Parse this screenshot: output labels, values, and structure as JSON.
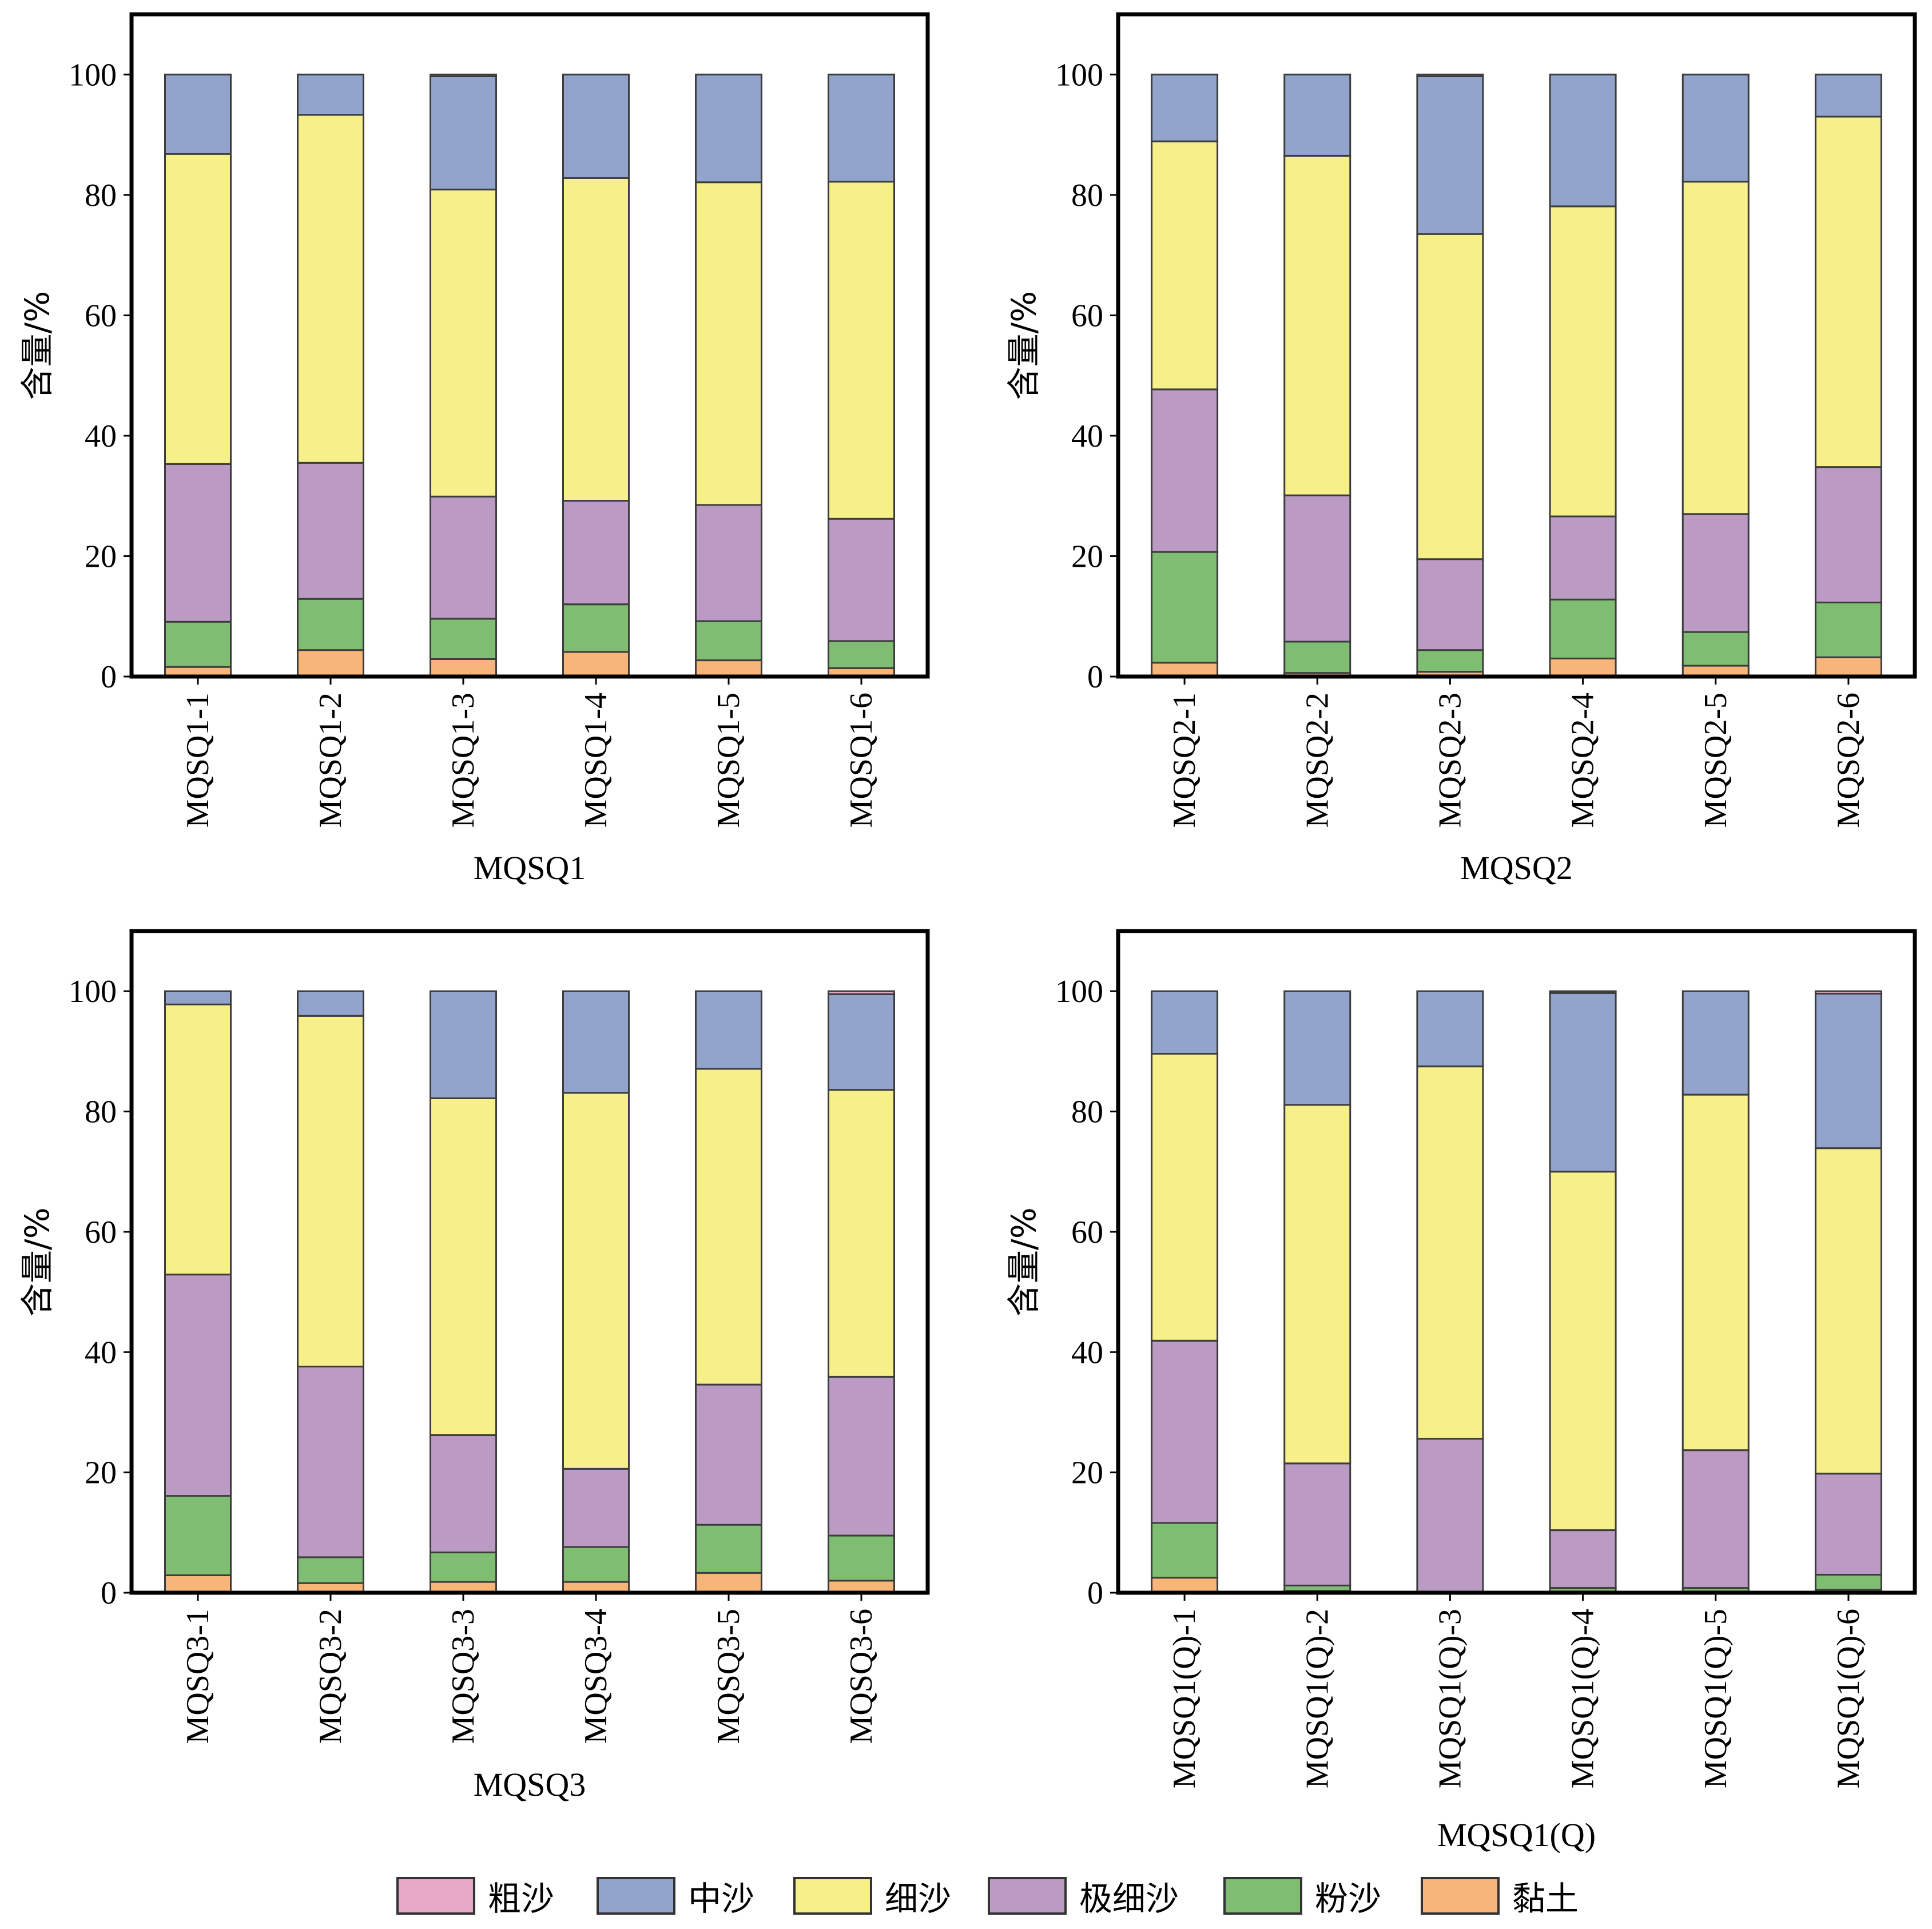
{
  "legend": {
    "items": [
      {
        "label": "粗沙",
        "color": "#e8a9c8"
      },
      {
        "label": "中沙",
        "color": "#93a4cc"
      },
      {
        "label": "细沙",
        "color": "#f7f08a"
      },
      {
        "label": "极细沙",
        "color": "#bb9bc4"
      },
      {
        "label": "粉沙",
        "color": "#7fbe72"
      },
      {
        "label": "黏土",
        "color": "#f7b57a"
      }
    ]
  },
  "chart_data": [
    {
      "type": "bar",
      "stacked": true,
      "xlabel": "MQSQ1",
      "ylabel": "含量/%",
      "ylim": [
        0,
        110
      ],
      "yticks": [
        0,
        20,
        40,
        60,
        80,
        100
      ],
      "categories": [
        "MQSQ1-1",
        "MQSQ1-2",
        "MQSQ1-3",
        "MQSQ1-4",
        "MQSQ1-5",
        "MQSQ1-6"
      ],
      "series": [
        {
          "name": "黏土",
          "values": [
            1.6,
            4.4,
            2.9,
            4.1,
            2.7,
            1.4
          ]
        },
        {
          "name": "粉沙",
          "values": [
            7.5,
            8.5,
            6.7,
            7.9,
            6.5,
            4.5
          ]
        },
        {
          "name": "极细沙",
          "values": [
            26.2,
            22.6,
            20.3,
            17.2,
            19.3,
            20.3
          ]
        },
        {
          "name": "细沙",
          "values": [
            51.5,
            57.8,
            51.0,
            53.6,
            53.6,
            56.0
          ]
        },
        {
          "name": "中沙",
          "values": [
            13.2,
            6.7,
            18.8,
            17.2,
            17.9,
            17.8
          ]
        },
        {
          "name": "粗沙",
          "values": [
            0,
            0,
            0.3,
            0,
            0,
            0
          ]
        }
      ]
    },
    {
      "type": "bar",
      "stacked": true,
      "xlabel": "MQSQ2",
      "ylabel": "含量/%",
      "ylim": [
        0,
        110
      ],
      "yticks": [
        0,
        20,
        40,
        60,
        80,
        100
      ],
      "categories": [
        "MQSQ2-1",
        "MQSQ2-2",
        "MQSQ2-3",
        "MQSQ2-4",
        "MQSQ2-5",
        "MQSQ2-6"
      ],
      "series": [
        {
          "name": "黏土",
          "values": [
            2.3,
            0.6,
            0.8,
            3.0,
            1.8,
            3.2
          ]
        },
        {
          "name": "粉沙",
          "values": [
            18.4,
            5.2,
            3.6,
            9.8,
            5.6,
            9.1
          ]
        },
        {
          "name": "极细沙",
          "values": [
            27.0,
            24.3,
            15.1,
            13.8,
            19.6,
            22.5
          ]
        },
        {
          "name": "细沙",
          "values": [
            41.2,
            56.4,
            54.0,
            51.5,
            55.2,
            58.2
          ]
        },
        {
          "name": "中沙",
          "values": [
            11.1,
            13.5,
            26.2,
            21.9,
            17.8,
            7.0
          ]
        },
        {
          "name": "粗沙",
          "values": [
            0,
            0,
            0.3,
            0,
            0,
            0
          ]
        }
      ]
    },
    {
      "type": "bar",
      "stacked": true,
      "xlabel": "MQSQ3",
      "ylabel": "含量/%",
      "ylim": [
        0,
        110
      ],
      "yticks": [
        0,
        20,
        40,
        60,
        80,
        100
      ],
      "categories": [
        "MQSQ3-1",
        "MQSQ3-2",
        "MQSQ3-3",
        "MQSQ3-4",
        "MQSQ3-5",
        "MQSQ3-6"
      ],
      "series": [
        {
          "name": "黏土",
          "values": [
            2.9,
            1.6,
            1.8,
            1.8,
            3.3,
            2.0
          ]
        },
        {
          "name": "粉沙",
          "values": [
            13.2,
            4.3,
            4.9,
            5.8,
            8.0,
            7.5
          ]
        },
        {
          "name": "极细沙",
          "values": [
            36.8,
            31.7,
            19.5,
            13.0,
            23.3,
            26.4
          ]
        },
        {
          "name": "细沙",
          "values": [
            44.9,
            58.3,
            56.0,
            62.5,
            52.5,
            47.7
          ]
        },
        {
          "name": "中沙",
          "values": [
            2.2,
            4.1,
            17.8,
            16.9,
            12.9,
            15.9
          ]
        },
        {
          "name": "粗沙",
          "values": [
            0,
            0,
            0,
            0,
            0,
            0.5
          ]
        }
      ]
    },
    {
      "type": "bar",
      "stacked": true,
      "xlabel": "MQSQ1(Q)",
      "ylabel": "含量/%",
      "ylim": [
        0,
        110
      ],
      "yticks": [
        0,
        20,
        40,
        60,
        80,
        100
      ],
      "categories": [
        "MQSQ1(Q)-1",
        "MQSQ1(Q)-2",
        "MQSQ1(Q)-3",
        "MQSQ1(Q)-4",
        "MQSQ1(Q)-5",
        "MQSQ1(Q)-6"
      ],
      "series": [
        {
          "name": "黏土",
          "values": [
            2.5,
            0.3,
            0,
            0.2,
            0.2,
            0.5
          ]
        },
        {
          "name": "粉沙",
          "values": [
            9.1,
            0.9,
            0,
            0.6,
            0.6,
            2.5
          ]
        },
        {
          "name": "极细沙",
          "values": [
            30.3,
            20.3,
            25.6,
            9.6,
            22.9,
            16.8
          ]
        },
        {
          "name": "细沙",
          "values": [
            47.7,
            59.6,
            61.9,
            59.6,
            59.1,
            54.1
          ]
        },
        {
          "name": "中沙",
          "values": [
            10.4,
            18.9,
            12.5,
            29.7,
            17.2,
            25.7
          ]
        },
        {
          "name": "粗沙",
          "values": [
            0,
            0,
            0,
            0.3,
            0,
            0.4
          ]
        }
      ]
    }
  ]
}
